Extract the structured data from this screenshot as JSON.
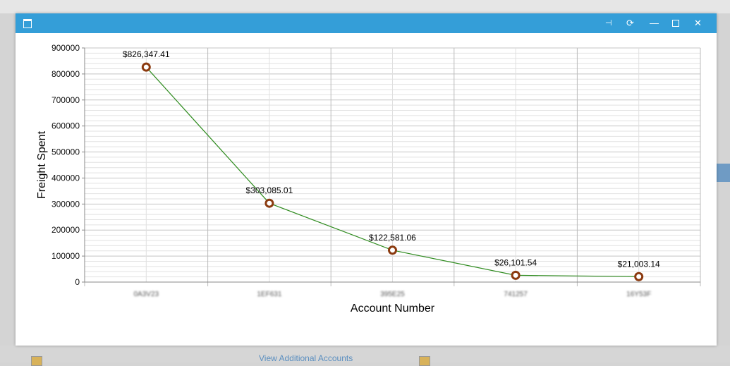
{
  "background": {
    "link": "View Additional Accounts"
  },
  "window": {
    "controls": [
      "pin-icon",
      "refresh-icon",
      "minimize-icon",
      "maximize-icon",
      "close-icon"
    ]
  },
  "chart_data": {
    "type": "line",
    "xlabel": "Account Number",
    "ylabel": "Freight Spent",
    "categories": [
      "0A3V23",
      "1EF631",
      "395E25",
      "741257",
      "16Y53F"
    ],
    "values": [
      826347.41,
      303085.01,
      122581.06,
      26101.54,
      21003.14
    ],
    "data_labels": [
      "$826,347.41",
      "$303,085.01",
      "$122,581.06",
      "$26,101.54",
      "$21,003.14"
    ],
    "ylim": [
      0,
      900000
    ],
    "yticks": [
      "0",
      "100000",
      "200000",
      "300000",
      "400000",
      "500000",
      "600000",
      "700000",
      "800000",
      "900000"
    ],
    "grid": true,
    "colors": {
      "line": "#2e8b1e",
      "marker": "#8b3a0f",
      "titlebar": "#349ed8"
    }
  }
}
